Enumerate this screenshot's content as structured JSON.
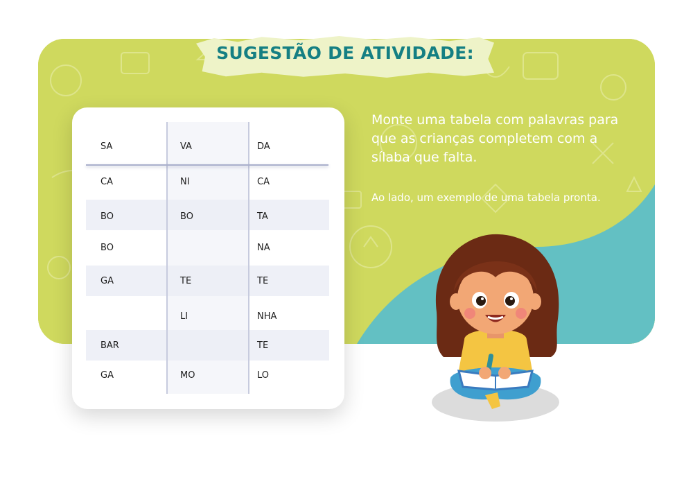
{
  "title": "SUGESTÃO DE ATIVIDADE:",
  "description": "Monte uma tabela com palavras para que as crianças completem com a sílaba que falta.",
  "note": "Ao lado, um exemplo de uma tabela pronta.",
  "table": {
    "rows": [
      [
        "SA",
        "VA",
        "DA"
      ],
      [
        "CA",
        "NI",
        "CA"
      ],
      [
        "BO",
        "BO",
        "TA"
      ],
      [
        "BO",
        "",
        "NA"
      ],
      [
        "GA",
        "TE",
        "TE"
      ],
      [
        "",
        "LI",
        "NHA"
      ],
      [
        "BAR",
        "",
        "TE"
      ],
      [
        "GA",
        "MO",
        "LO"
      ]
    ]
  },
  "colors": {
    "banner_green": "#cfd95e",
    "wave_teal": "#63c0c3",
    "title_teal": "#157f83",
    "tape": "#eef3c8"
  },
  "illustration": "girl-reading-book-illustration"
}
